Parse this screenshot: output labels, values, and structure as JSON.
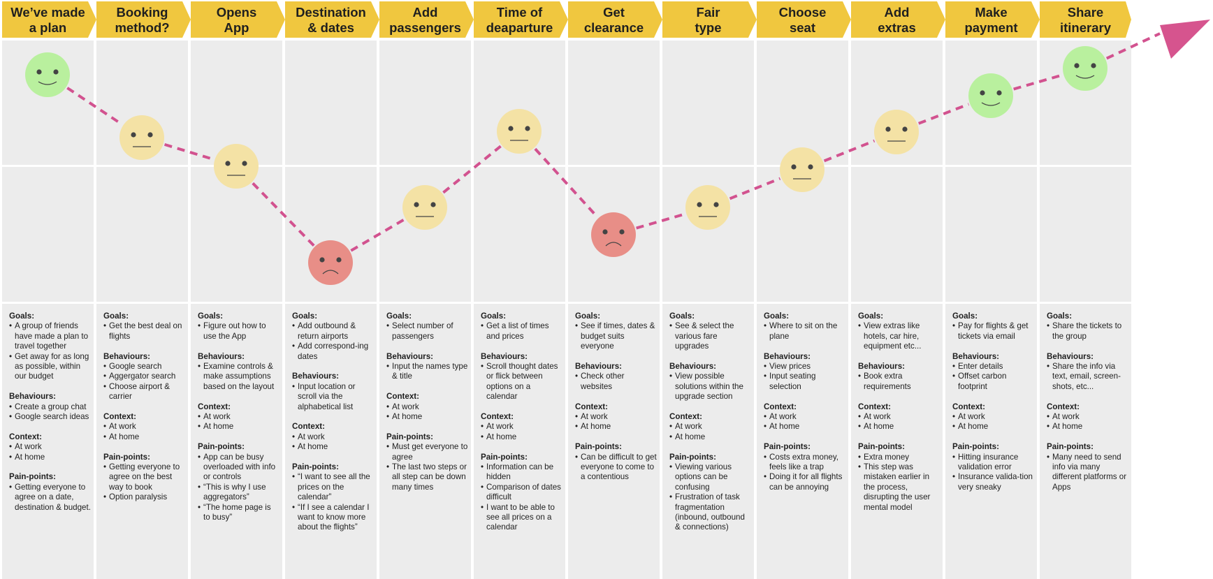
{
  "stages": [
    {
      "title": "We’ve made\na plan",
      "sentiment": "happy",
      "sections": [
        {
          "label": "Goals:",
          "items": [
            "A group of friends have made a plan to travel together",
            "Get away for as long as possible, within our budget"
          ]
        },
        {
          "label": "Behaviours:",
          "items": [
            "Create a group chat",
            "Google search ideas"
          ]
        },
        {
          "label": "Context:",
          "items": [
            "At work",
            "At home"
          ]
        },
        {
          "label": "Pain-points:",
          "items": [
            "Getting everyone to agree on a date, destination & budget."
          ]
        }
      ]
    },
    {
      "title": "Booking\nmethod?",
      "sentiment": "neutral",
      "sections": [
        {
          "label": "Goals:",
          "items": [
            "Get the best deal on flights"
          ]
        },
        {
          "label": "Behaviours:",
          "items": [
            "Google search",
            "Aggergator search",
            "Choose airport & carrier"
          ]
        },
        {
          "label": "Context:",
          "items": [
            "At work",
            "At home"
          ]
        },
        {
          "label": "Pain-points:",
          "items": [
            "Getting everyone to agree on the best way to book",
            "Option paralysis"
          ]
        }
      ]
    },
    {
      "title": "Opens\nApp",
      "sentiment": "neutral",
      "sections": [
        {
          "label": "Goals:",
          "items": [
            "Figure out how to use the App"
          ]
        },
        {
          "label": "Behaviours:",
          "items": [
            "Examine controls & make assumptions based on the layout"
          ]
        },
        {
          "label": "Context:",
          "items": [
            "At work",
            "At home"
          ]
        },
        {
          "label": "Pain-points:",
          "items": [
            "App can be busy overloaded with info or controls",
            "“This is why I use aggregators”",
            "“The home page is to busy”"
          ]
        }
      ]
    },
    {
      "title": "Destination\n& dates",
      "sentiment": "sad",
      "sections": [
        {
          "label": "Goals:",
          "items": [
            "Add outbound & return airports",
            "Add correspond-ing dates"
          ]
        },
        {
          "label": "Behaviours:",
          "items": [
            "Input location or scroll via the alphabetical list"
          ]
        },
        {
          "label": "Context:",
          "items": [
            "At work",
            "At home"
          ]
        },
        {
          "label": "Pain-points:",
          "items": [
            "“I want to see all the prices on the calendar”",
            "“If I see a calendar I want to know more about the flights”"
          ]
        }
      ]
    },
    {
      "title": "Add\npassengers",
      "sentiment": "neutral",
      "sections": [
        {
          "label": "Goals:",
          "items": [
            "Select number of passengers"
          ]
        },
        {
          "label": "Behaviours:",
          "items": [
            "Input the names type & title"
          ]
        },
        {
          "label": "Context:",
          "items": [
            "At work",
            "At home"
          ]
        },
        {
          "label": "Pain-points:",
          "items": [
            "Must get everyone to agree",
            "The last two steps or all step can be down many times"
          ]
        }
      ]
    },
    {
      "title": "Time of\ndeaparture",
      "sentiment": "neutral",
      "sections": [
        {
          "label": "Goals:",
          "items": [
            "Get a list of times and prices"
          ]
        },
        {
          "label": "Behaviours:",
          "items": [
            "Scroll thought dates or flick between options on a calendar"
          ]
        },
        {
          "label": "Context:",
          "items": [
            "At work",
            "At home"
          ]
        },
        {
          "label": "Pain-points:",
          "items": [
            "Information can be hidden",
            "Comparison of dates difficult",
            "I want to be able to see all prices on a calendar"
          ]
        }
      ]
    },
    {
      "title": "Get\nclearance",
      "sentiment": "sad",
      "sections": [
        {
          "label": "Goals:",
          "items": [
            "See if times, dates & budget suits everyone"
          ]
        },
        {
          "label": "Behaviours:",
          "items": [
            "Check other websites"
          ]
        },
        {
          "label": "Context:",
          "items": [
            "At work",
            "At home"
          ]
        },
        {
          "label": "Pain-points:",
          "items": [
            "Can be difficult to get everyone to come to a contentious"
          ]
        }
      ]
    },
    {
      "title": "Fair\ntype",
      "sentiment": "neutral",
      "sections": [
        {
          "label": "Goals:",
          "items": [
            "See & select the various fare upgrades"
          ]
        },
        {
          "label": "Behaviours:",
          "items": [
            "View possible solutions within the upgrade section"
          ]
        },
        {
          "label": "Context:",
          "items": [
            "At work",
            "At home"
          ]
        },
        {
          "label": "Pain-points:",
          "items": [
            "Viewing various options can be confusing",
            "Frustration of task fragmentation (inbound, outbound & connections)"
          ]
        }
      ]
    },
    {
      "title": "Choose\nseat",
      "sentiment": "neutral",
      "sections": [
        {
          "label": "Goals:",
          "items": [
            "Where to sit on the plane"
          ]
        },
        {
          "label": "Behaviours:",
          "items": [
            "View prices",
            "Input seating selection"
          ]
        },
        {
          "label": "Context:",
          "items": [
            "At work",
            "At home"
          ]
        },
        {
          "label": "Pain-points:",
          "items": [
            "Costs extra money, feels like a trap",
            "Doing it for all flights can be annoying"
          ]
        }
      ]
    },
    {
      "title": "Add\nextras",
      "sentiment": "neutral",
      "sections": [
        {
          "label": "Goals:",
          "items": [
            "View extras like hotels, car hire, equipment etc..."
          ]
        },
        {
          "label": "Behaviours:",
          "items": [
            "Book extra requirements"
          ]
        },
        {
          "label": "Context:",
          "items": [
            "At work",
            "At home"
          ]
        },
        {
          "label": "Pain-points:",
          "items": [
            "Extra money",
            "This step was mistaken earlier in the process, disrupting the user mental model"
          ]
        }
      ]
    },
    {
      "title": "Make\npayment",
      "sentiment": "happy",
      "sections": [
        {
          "label": "Goals:",
          "items": [
            "Pay for flights & get tickets via email"
          ]
        },
        {
          "label": "Behaviours:",
          "items": [
            "Enter details",
            "Offset carbon footprint"
          ]
        },
        {
          "label": "Context:",
          "items": [
            "At work",
            "At home"
          ]
        },
        {
          "label": "Pain-points:",
          "items": [
            "Hitting insurance validation error",
            "Insurance valida-tion very sneaky"
          ]
        }
      ]
    },
    {
      "title": "Share\nitinerary",
      "sentiment": "happy",
      "sections": [
        {
          "label": "Goals:",
          "items": [
            "Share the tickets to the group"
          ]
        },
        {
          "label": "Behaviours:",
          "items": [
            "Share the info via text, email, screen-shots, etc..."
          ]
        },
        {
          "label": "Context:",
          "items": [
            "At work",
            "At home"
          ]
        },
        {
          "label": "Pain-points:",
          "items": [
            "Many need to send info via many different platforms or Apps"
          ]
        }
      ]
    }
  ],
  "colors": {
    "header": "#f0c73f",
    "cell": "#ececec",
    "happy": "#b9f09e",
    "neutral": "#f4e2a5",
    "sad": "#e88e87",
    "line": "#d2528f",
    "arrow": "#d6548e",
    "face_features": "#444444"
  }
}
